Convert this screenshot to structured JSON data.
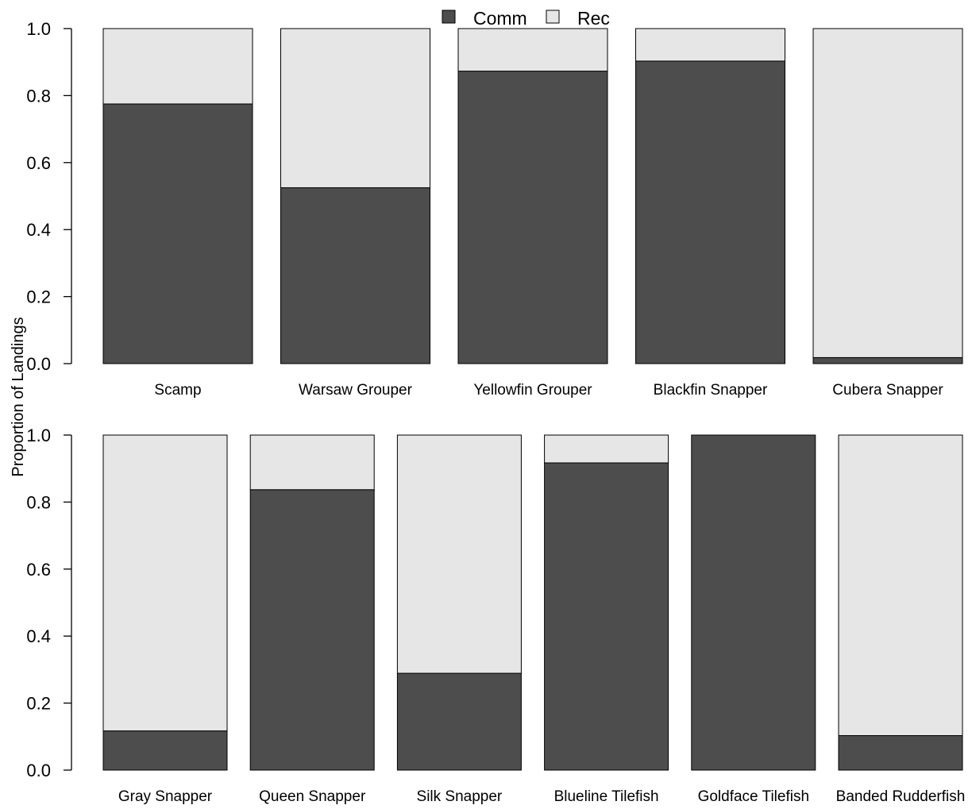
{
  "legend": {
    "entries": [
      {
        "label": "Comm",
        "color": "#4d4d4d"
      },
      {
        "label": "Rec",
        "color": "#e6e6e6"
      }
    ]
  },
  "y_axis": {
    "label": "Proportion of Landings",
    "ticks": [
      "0.0",
      "0.2",
      "0.4",
      "0.6",
      "0.8",
      "1.0"
    ]
  },
  "colors": {
    "comm": "#4d4d4d",
    "rec": "#e6e6e6",
    "outline": "#000000"
  },
  "chart_data": [
    {
      "type": "bar",
      "stacked": true,
      "categories": [
        "Scamp",
        "Warsaw Grouper",
        "Yellowfin Grouper",
        "Blackfin Snapper",
        "Cubera Snapper"
      ],
      "series": [
        {
          "name": "Comm",
          "values": [
            0.775,
            0.525,
            0.873,
            0.903,
            0.018
          ]
        },
        {
          "name": "Rec",
          "values": [
            0.225,
            0.475,
            0.127,
            0.097,
            0.982
          ]
        }
      ],
      "ylim": [
        0,
        1
      ],
      "yticks": [
        0.0,
        0.2,
        0.4,
        0.6,
        0.8,
        1.0
      ]
    },
    {
      "type": "bar",
      "stacked": true,
      "categories": [
        "Gray Snapper",
        "Queen Snapper",
        "Silk Snapper",
        "Blueline Tilefish",
        "Goldface Tilefish",
        "Banded Rudderfish"
      ],
      "series": [
        {
          "name": "Comm",
          "values": [
            0.117,
            0.837,
            0.289,
            0.917,
            1.0,
            0.103
          ]
        },
        {
          "name": "Rec",
          "values": [
            0.883,
            0.163,
            0.711,
            0.083,
            0.0,
            0.897
          ]
        }
      ],
      "ylim": [
        0,
        1
      ],
      "yticks": [
        0.0,
        0.2,
        0.4,
        0.6,
        0.8,
        1.0
      ]
    }
  ]
}
